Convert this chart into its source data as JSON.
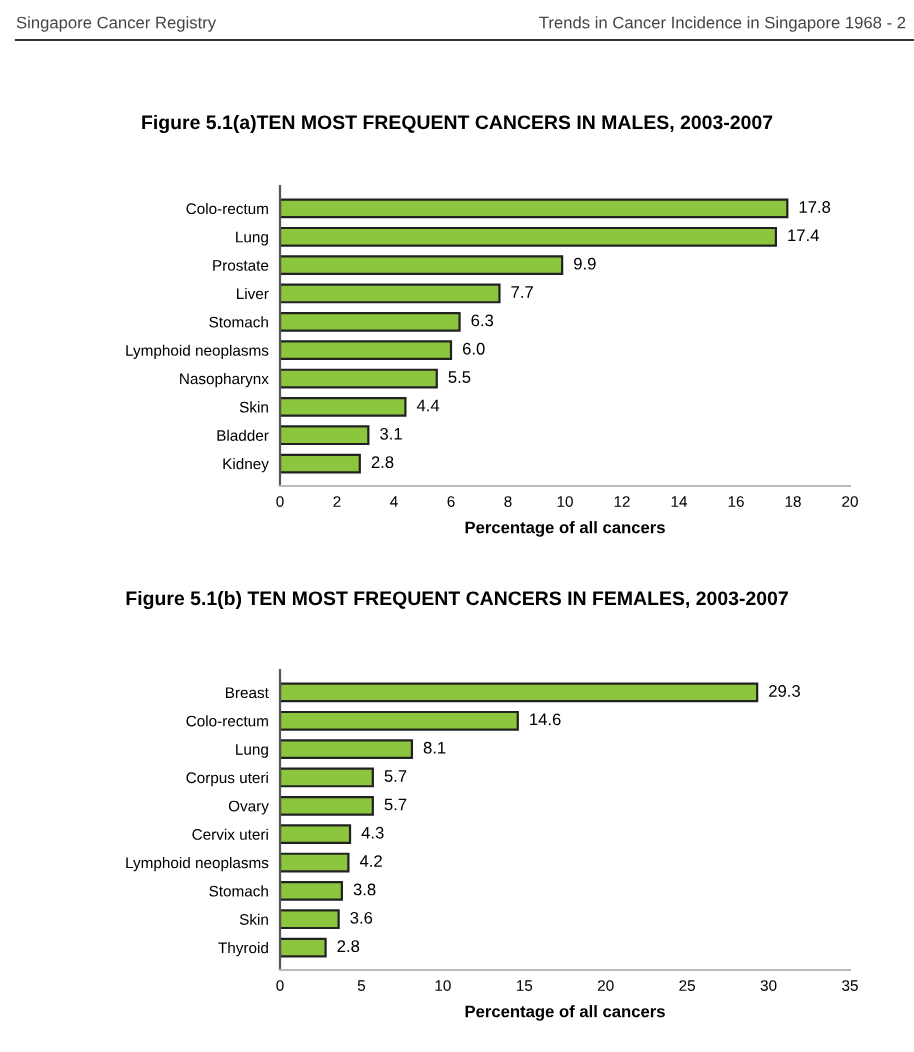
{
  "chart_data": [
    {
      "type": "bar",
      "orientation": "horizontal",
      "title": "Figure 5.1(a)TEN MOST FREQUENT CANCERS IN MALES, 2003-2007",
      "xlabel": "Percentage of all cancers",
      "annotations": [
        "Singapore Cancer Registry",
        "Trends in Cancer Incidence in Singapore 1968 - 2"
      ],
      "categories": [
        "Colo-rectum",
        "Lung",
        "Prostate",
        "Liver",
        "Stomach",
        "Lymphoid neoplasms",
        "Nasopharynx",
        "Skin",
        "Bladder",
        "Kidney"
      ],
      "values": [
        17.8,
        17.4,
        9.9,
        7.7,
        6.3,
        6.0,
        5.5,
        4.4,
        3.1,
        2.8
      ],
      "color": "#8cc63e",
      "value_labels": [
        "17.8",
        "17.4",
        "9.9",
        "7.7",
        "6.3",
        "6.0",
        "5.5",
        "4.4",
        "3.1",
        "2.8"
      ],
      "xlim": [
        0,
        20
      ],
      "xticks": [
        0,
        2,
        4,
        6,
        8,
        10,
        12,
        14,
        16,
        18,
        20
      ],
      "grid": false
    },
    {
      "type": "bar",
      "orientation": "horizontal",
      "title": "Figure 5.1(b) TEN MOST FREQUENT CANCERS IN FEMALES, 2003-2007",
      "xlabel": "Percentage of all cancers",
      "categories": [
        "Breast",
        "Colo-rectum",
        "Lung",
        "Corpus uteri",
        "Ovary",
        "Cervix uteri",
        "Lymphoid neoplasms",
        "Stomach",
        "Skin",
        "Thyroid"
      ],
      "values": [
        29.3,
        14.6,
        8.1,
        5.7,
        5.7,
        4.3,
        4.2,
        3.8,
        3.6,
        2.8
      ],
      "color": "#8cc63e",
      "value_labels": [
        "29.3",
        "14.6",
        "8.1",
        "5.7",
        "5.7",
        "4.3",
        "4.2",
        "3.8",
        "3.6",
        "2.8"
      ],
      "xlim": [
        0,
        35
      ],
      "xticks": [
        0,
        5,
        10,
        15,
        20,
        25,
        30,
        35
      ],
      "grid": false
    }
  ]
}
